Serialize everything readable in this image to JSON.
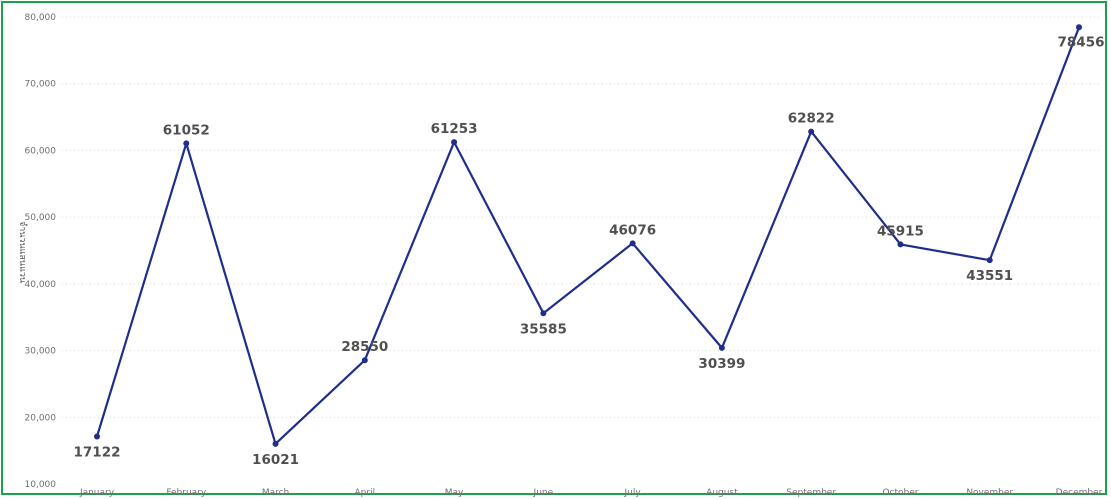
{
  "chart_data": {
    "type": "line",
    "title": "",
    "xlabel": "",
    "ylabel": "จำนวนแสนแวน",
    "categories": [
      "January",
      "February",
      "March",
      "April",
      "May",
      "June",
      "July",
      "August",
      "September",
      "October",
      "November",
      "December"
    ],
    "series": [
      {
        "values": [
          17122,
          61052,
          16021,
          28550,
          61253,
          35585,
          46076,
          30399,
          62822,
          45915,
          43551,
          78456
        ]
      }
    ],
    "data_labels": [
      "17122",
      "61052",
      "16021",
      "28550",
      "61253",
      "35585",
      "46076",
      "30399",
      "62822",
      "45915",
      "43551",
      "78456"
    ],
    "label_position": [
      "below",
      "above",
      "below",
      "above",
      "above",
      "below",
      "above",
      "below",
      "above",
      "above",
      "below",
      "below"
    ],
    "yticks": [
      10000,
      20000,
      30000,
      40000,
      50000,
      60000,
      70000,
      80000
    ],
    "ytick_labels": [
      "10,000",
      "20,000",
      "30,000",
      "40,000",
      "50,000",
      "60,000",
      "70,000",
      "80,000"
    ],
    "ylim": [
      10000,
      80000
    ],
    "grid": true,
    "legend": "none",
    "line_color": "#1f2e8c",
    "frame_color": "#1aa34a"
  }
}
